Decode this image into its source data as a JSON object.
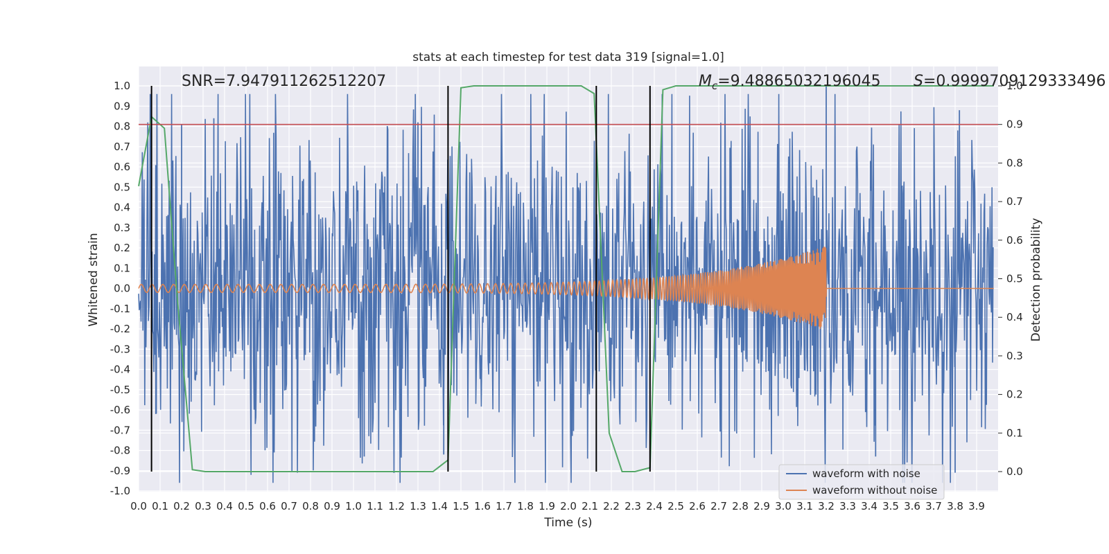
{
  "chart_data": {
    "type": "line",
    "title": "stats at each timestep for test data 319 [signal=1.0]",
    "xlabel": "Time (s)",
    "ylabel": "Whitened strain",
    "y2label": "Detection probability",
    "xlim": [
      0.0,
      4.0
    ],
    "ylim": [
      -1.0,
      1.0
    ],
    "y2lim": [
      0.0,
      1.0
    ],
    "y2lim_display": [
      -0.05,
      1.0
    ],
    "grid": true,
    "legend_position": "lower-right",
    "x_ticks": [
      "0.0",
      "0.1",
      "0.2",
      "0.3",
      "0.4",
      "0.5",
      "0.6",
      "0.7",
      "0.8",
      "0.9",
      "1.0",
      "1.1",
      "1.2",
      "1.3",
      "1.4",
      "1.5",
      "1.6",
      "1.7",
      "1.8",
      "1.9",
      "2.0",
      "2.1",
      "2.2",
      "2.3",
      "2.4",
      "2.5",
      "2.6",
      "2.7",
      "2.8",
      "2.9",
      "3.0",
      "3.1",
      "3.2",
      "3.3",
      "3.4",
      "3.5",
      "3.6",
      "3.7",
      "3.8",
      "3.9"
    ],
    "y_ticks": [
      "1.0",
      "0.9",
      "0.8",
      "0.7",
      "0.6",
      "0.5",
      "0.4",
      "0.3",
      "0.2",
      "0.1",
      "0.0",
      "-0.1",
      "-0.2",
      "-0.3",
      "-0.4",
      "-0.5",
      "-0.6",
      "-0.7",
      "-0.8",
      "-0.9",
      "-1.0"
    ],
    "y2_ticks": [
      "1.0",
      "0.9",
      "0.8",
      "0.7",
      "0.6",
      "0.5",
      "0.4",
      "0.3",
      "0.2",
      "0.1",
      "0.0"
    ],
    "annotations": [
      {
        "text": "SNR=7.947911262512207"
      },
      {
        "text": "M_c=9.48865032196045",
        "base": "M",
        "sub": "c",
        "rest": "=9.48865032196045"
      },
      {
        "text": "S=0.9999709129333496",
        "base": "S",
        "rest": "=0.9999709129333496"
      }
    ],
    "threshold_line": {
      "value": 0.9,
      "axis": "y2",
      "color": "#c44e52"
    },
    "vertical_lines": [
      0.06,
      1.44,
      2.13,
      2.38
    ],
    "series": [
      {
        "name": "waveform with noise",
        "color": "#4c72b0",
        "noise_amplitude": 0.38,
        "peaks": [
          [
            0.2,
            0.81
          ],
          [
            0.35,
            0.84
          ],
          [
            1.3,
            0.82
          ],
          [
            3.2,
            1.0
          ],
          [
            3.82,
            0.88
          ],
          [
            1.05,
            -0.83
          ],
          [
            1.42,
            -0.82
          ],
          [
            3.43,
            -0.83
          ],
          [
            3.8,
            -0.91
          ],
          [
            0.08,
            -0.62
          ]
        ]
      },
      {
        "name": "waveform without noise",
        "color": "#dd8452",
        "chirp": {
          "f0": 20,
          "f1": 200,
          "tc": 3.2,
          "amp_start": 0.02,
          "amp_end": 0.21
        }
      },
      {
        "name": "detection probability",
        "color": "#55a868",
        "axis": "y2",
        "x": [
          0.0,
          0.06,
          0.12,
          0.18,
          0.25,
          0.31,
          0.37,
          0.5,
          0.8,
          1.0,
          1.2,
          1.37,
          1.44,
          1.5,
          1.56,
          1.7,
          2.0,
          2.06,
          2.12,
          2.19,
          2.25,
          2.31,
          2.38,
          2.44,
          2.5,
          2.6,
          3.0,
          3.5,
          4.0
        ],
        "values": [
          0.74,
          0.92,
          0.89,
          0.45,
          0.005,
          0.0,
          0.0,
          0.0,
          0.0,
          0.0,
          0.0,
          0.0,
          0.03,
          0.995,
          1.0,
          1.0,
          1.0,
          1.0,
          0.98,
          0.1,
          0.0,
          0.0,
          0.01,
          0.99,
          1.0,
          1.0,
          1.0,
          1.0,
          1.0
        ]
      }
    ]
  }
}
